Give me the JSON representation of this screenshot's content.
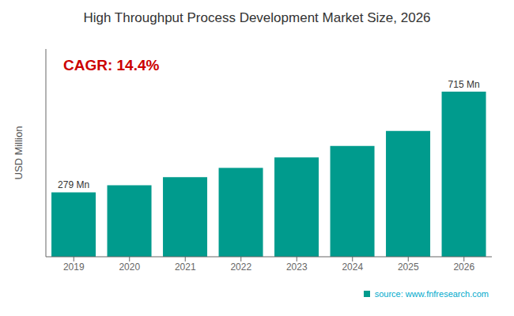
{
  "chart_data": {
    "type": "bar",
    "title": "High Throughput Process Development Market Size, 2026",
    "categories": [
      "2019",
      "2020",
      "2021",
      "2022",
      "2023",
      "2024",
      "2025",
      "2026"
    ],
    "values": [
      279,
      310,
      345,
      385,
      430,
      480,
      545,
      715
    ],
    "value_labels": [
      "279 Mn",
      null,
      null,
      null,
      null,
      null,
      null,
      "715 Mn"
    ],
    "color": "#009B8D",
    "ylabel": "USD Million",
    "ylim": [
      0,
      900
    ],
    "tick_labels": "x",
    "grid": false,
    "annotations": [
      {
        "text": "CAGR: 14.4%",
        "color": "#cc0000"
      },
      {
        "text": "source: www.fnfresearch.com",
        "color": "#00AACC"
      }
    ]
  }
}
